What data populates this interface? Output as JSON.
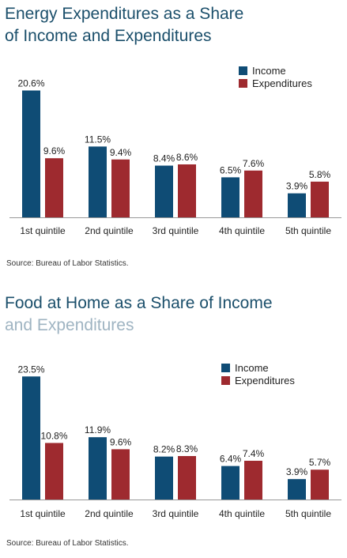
{
  "chart_data": [
    {
      "type": "bar",
      "title_line1": "Energy Expenditures as a Share",
      "title_line2": "of Income and Expenditures",
      "categories": [
        "1st quintile",
        "2nd quintile",
        "3rd quintile",
        "4th quintile",
        "5th quintile"
      ],
      "series": [
        {
          "name": "Income",
          "values": [
            20.6,
            11.5,
            8.4,
            6.5,
            3.9
          ],
          "labels": [
            "20.6%",
            "11.5%",
            "8.4%",
            "6.5%",
            "3.9%"
          ],
          "color": "#0f4c75"
        },
        {
          "name": "Expenditures",
          "values": [
            9.6,
            9.4,
            8.6,
            7.6,
            5.8
          ],
          "labels": [
            "9.6%",
            "9.4%",
            "8.6%",
            "7.6%",
            "5.8%"
          ],
          "color": "#9e2a2f"
        }
      ],
      "ylim": [
        0,
        24
      ],
      "legend": "top-right",
      "grid": false,
      "source": "Source: Bureau of Labor Statistics."
    },
    {
      "type": "bar",
      "title_line1": "Food at Home as a Share of Income",
      "title_line2": "and Expenditures",
      "categories": [
        "1st quintile",
        "2nd quintile",
        "3rd quintile",
        "4th quintile",
        "5th quintile"
      ],
      "series": [
        {
          "name": "Income",
          "values": [
            23.5,
            11.9,
            8.2,
            6.4,
            3.9
          ],
          "labels": [
            "23.5%",
            "11.9%",
            "8.2%",
            "6.4%",
            "3.9%"
          ],
          "color": "#0f4c75"
        },
        {
          "name": "Expenditures",
          "values": [
            10.8,
            9.6,
            8.3,
            7.4,
            5.7
          ],
          "labels": [
            "10.8%",
            "9.6%",
            "8.3%",
            "7.4%",
            "5.7%"
          ],
          "color": "#9e2a2f"
        }
      ],
      "ylim": [
        0,
        24
      ],
      "legend": "top-right",
      "grid": false,
      "source": "Source: Bureau of Labor Statistics."
    }
  ]
}
